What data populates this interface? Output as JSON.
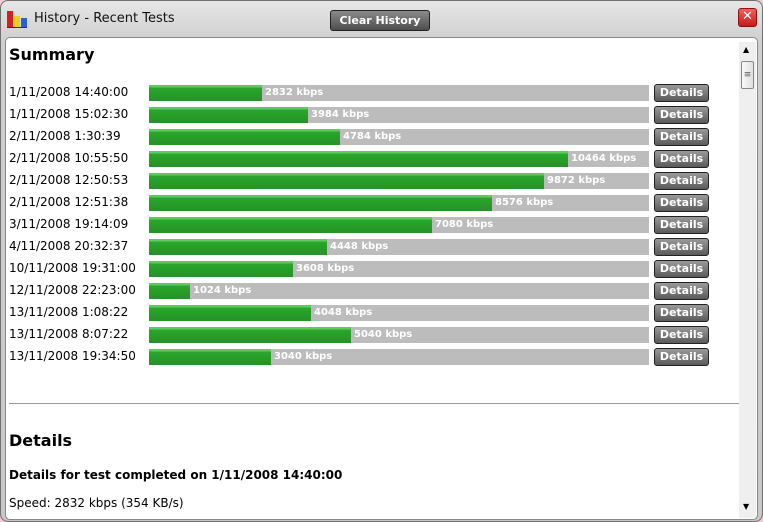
{
  "window": {
    "title": "History - Recent Tests",
    "clear_label": "Clear History",
    "close_icon": "close-icon"
  },
  "summary": {
    "heading": "Summary",
    "details_label": "Details",
    "accent_color": "#2ea52e",
    "rows": [
      {
        "date": "1/11/2008 14:40:00",
        "speed": 2832,
        "label": "2832 kbps"
      },
      {
        "date": "1/11/2008 15:02:30",
        "speed": 3984,
        "label": "3984 kbps"
      },
      {
        "date": "2/11/2008 1:30:39",
        "speed": 4784,
        "label": "4784 kbps"
      },
      {
        "date": "2/11/2008 10:55:50",
        "speed": 10464,
        "label": "10464 kbps"
      },
      {
        "date": "2/11/2008 12:50:53",
        "speed": 9872,
        "label": "9872 kbps"
      },
      {
        "date": "2/11/2008 12:51:38",
        "speed": 8576,
        "label": "8576 kbps"
      },
      {
        "date": "3/11/2008 19:14:09",
        "speed": 7080,
        "label": "7080 kbps"
      },
      {
        "date": "4/11/2008 20:32:37",
        "speed": 4448,
        "label": "4448 kbps"
      },
      {
        "date": "10/11/2008 19:31:00",
        "speed": 3608,
        "label": "3608 kbps"
      },
      {
        "date": "12/11/2008 22:23:00",
        "speed": 1024,
        "label": "1024 kbps"
      },
      {
        "date": "13/11/2008 1:08:22",
        "speed": 4048,
        "label": "4048 kbps"
      },
      {
        "date": "13/11/2008 8:07:22",
        "speed": 5040,
        "label": "5040 kbps"
      },
      {
        "date": "13/11/2008 19:34:50",
        "speed": 3040,
        "label": "3040 kbps"
      }
    ]
  },
  "details": {
    "heading": "Details",
    "subtitle": "Details for test completed on 1/11/2008 14:40:00",
    "speed": "Speed: 2832 kbps (354 KB/s)"
  }
}
